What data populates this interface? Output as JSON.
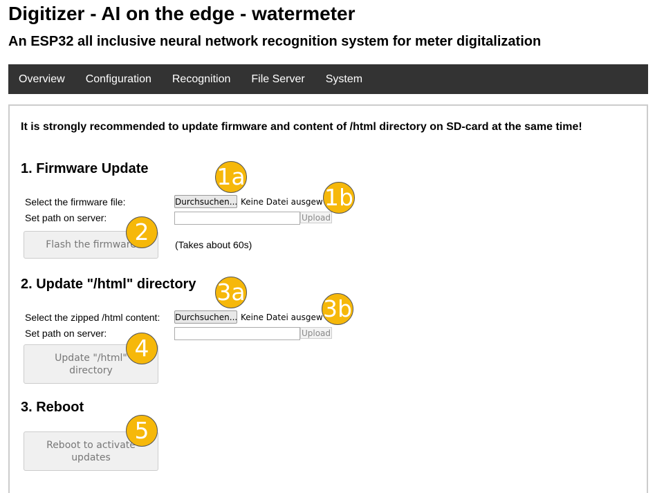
{
  "title": "Digitizer - AI on the edge - watermeter",
  "subtitle": "An ESP32 all inclusive neural network recognition system for meter digitalization",
  "nav": [
    "Overview",
    "Configuration",
    "Recognition",
    "File Server",
    "System"
  ],
  "warning": "It is strongly recommended to update firmware and content of /html directory on SD-card at the same time!",
  "firmware": {
    "heading": "1. Firmware Update",
    "select_label": "Select the firmware file:",
    "browse": "Durchsuchen...",
    "no_file": "Keine Datei ausgewählt.",
    "path_label": "Set path on server:",
    "path_value": "",
    "upload": "Upload",
    "flash": "Flash the firmware",
    "note": "(Takes about 60s)"
  },
  "html": {
    "heading": "2. Update \"/html\" directory",
    "select_label": "Select the zipped /html content:",
    "browse": "Durchsuchen...",
    "no_file": "Keine Datei ausgewählt.",
    "path_label": "Set path on server:",
    "path_value": "",
    "upload": "Upload",
    "update": "Update \"/html\" directory"
  },
  "reboot": {
    "heading": "3. Reboot",
    "button": "Reboot to activate updates"
  },
  "badges": [
    "1a",
    "1b",
    "2",
    "3a",
    "3b",
    "4",
    "5"
  ],
  "colors": {
    "nav_bg": "#333333",
    "badge": "#f6b80a"
  }
}
